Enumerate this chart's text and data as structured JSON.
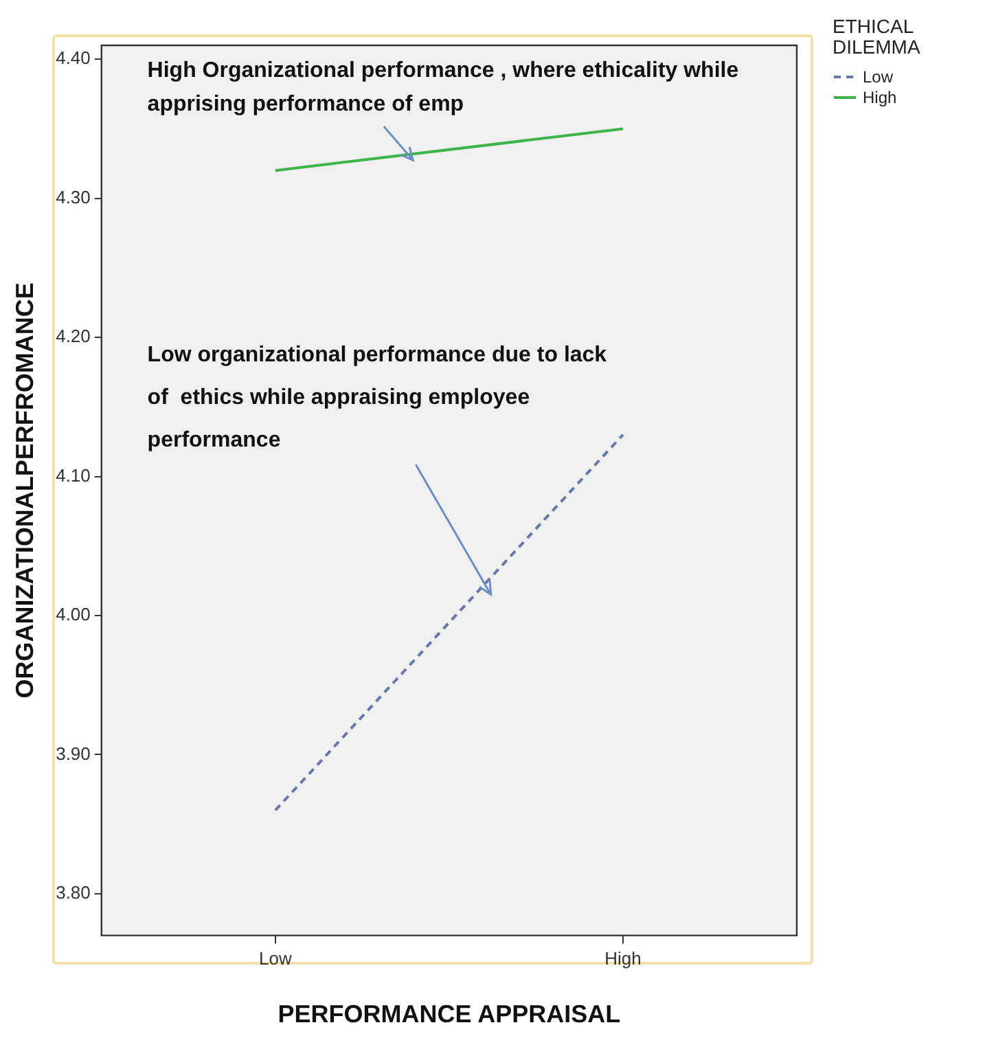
{
  "chart_data": {
    "type": "line",
    "xlabel": "PERFORMANCE APPRAISAL",
    "ylabel": "ORGANIZATIONALPERFROMANCE",
    "legend_title": "ETHICAL DILEMMA",
    "categories": [
      "Low",
      "High"
    ],
    "series": [
      {
        "name": "Low",
        "color": "#6677aa",
        "values": [
          3.86,
          4.13
        ],
        "line_style": "dashed"
      },
      {
        "name": "High",
        "color": "#3cb44a",
        "values": [
          4.32,
          4.35
        ],
        "line_style": "solid"
      }
    ],
    "ylim": [
      3.77,
      4.41
    ],
    "yticks": [
      {
        "value": 3.8,
        "label": "3.80"
      },
      {
        "value": 3.9,
        "label": "3.90"
      },
      {
        "value": 4.0,
        "label": "4.00"
      },
      {
        "value": 4.1,
        "label": "4.10"
      },
      {
        "value": 4.2,
        "label": "4.20"
      },
      {
        "value": 4.3,
        "label": "4.30"
      },
      {
        "value": 4.4,
        "label": "4.40"
      }
    ],
    "legend": "top right",
    "marker": "none",
    "annotations": [
      "High Organizational performance , where ethicality while  apprising performance of emp",
      "Low organizational performance due to lack of  ethics while appraising employee performance"
    ]
  }
}
